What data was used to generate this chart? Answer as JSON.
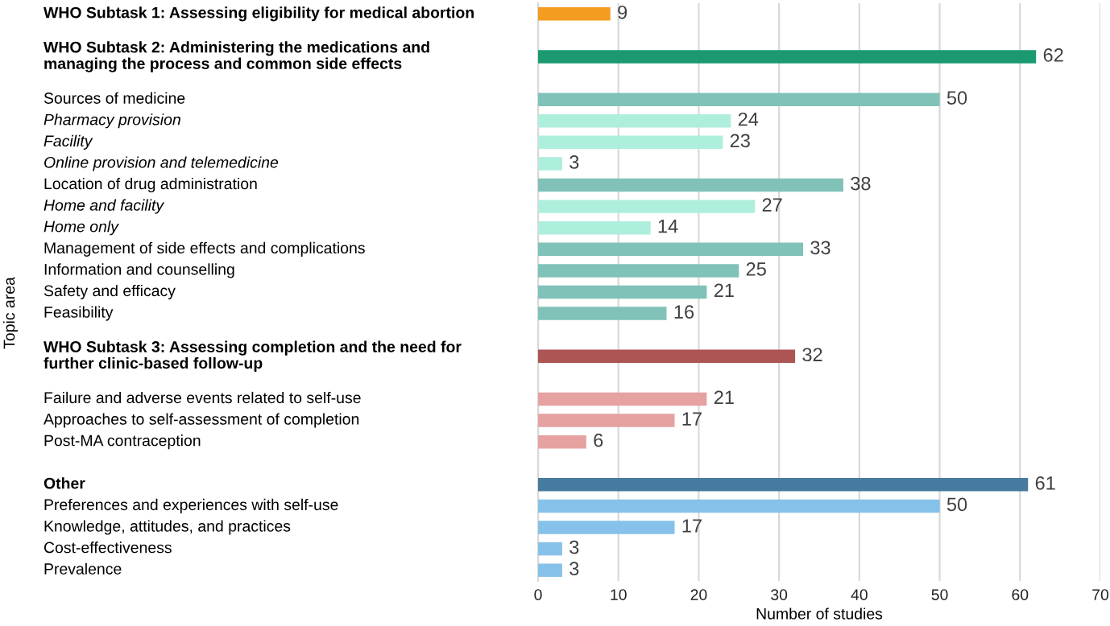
{
  "chart_data": {
    "type": "bar",
    "orientation": "horizontal",
    "xlabel": "Number of studies",
    "ylabel": "Topic area",
    "categories": [
      "WHO Subtask 1: Assessing eligibility for medical abortion",
      null,
      "WHO Subtask 2: Administering the medications and\nmanaging the process and common side effects",
      null,
      "Sources of medicine",
      "Pharmacy provision",
      "Facility",
      "Online provision and telemedicine",
      "Location of drug administration",
      "Home and facility",
      "Home only",
      "Management of side effects and complications",
      "Information and counselling",
      "Safety and efficacy",
      "Feasibility",
      null,
      "WHO Subtask 3: Assessing completion and the need for\nfurther clinic-based follow-up",
      null,
      "Failure and adverse events related to self-use",
      "Approaches to self-assessment of completion",
      "Post-MA contraception",
      null,
      "Other",
      "Preferences and experiences with self-use",
      "Knowledge, attitudes, and practices",
      "Cost-effectiveness",
      "Prevalence"
    ],
    "values": [
      9,
      null,
      62,
      null,
      50,
      24,
      23,
      3,
      38,
      27,
      14,
      33,
      25,
      21,
      16,
      null,
      32,
      null,
      21,
      17,
      6,
      null,
      61,
      50,
      17,
      3,
      3
    ],
    "colors": [
      "#f39c1f",
      null,
      "#1b9a72",
      null,
      "#80c2b8",
      "#aeeedd",
      "#aeeedd",
      "#aeeedd",
      "#80c2b8",
      "#aeeedd",
      "#aeeedd",
      "#80c2b8",
      "#80c2b8",
      "#80c2b8",
      "#80c2b8",
      null,
      "#ad5454",
      null,
      "#e6a1a1",
      "#e6a1a1",
      "#e6a1a1",
      null,
      "#467a9e",
      "#86c1e9",
      "#86c1e9",
      "#86c1e9",
      "#86c1e9"
    ],
    "xlim": [
      0,
      70
    ],
    "xticks": [
      0,
      10,
      20,
      30,
      40,
      50,
      60,
      70
    ],
    "grid": "x",
    "data_labels": true
  }
}
